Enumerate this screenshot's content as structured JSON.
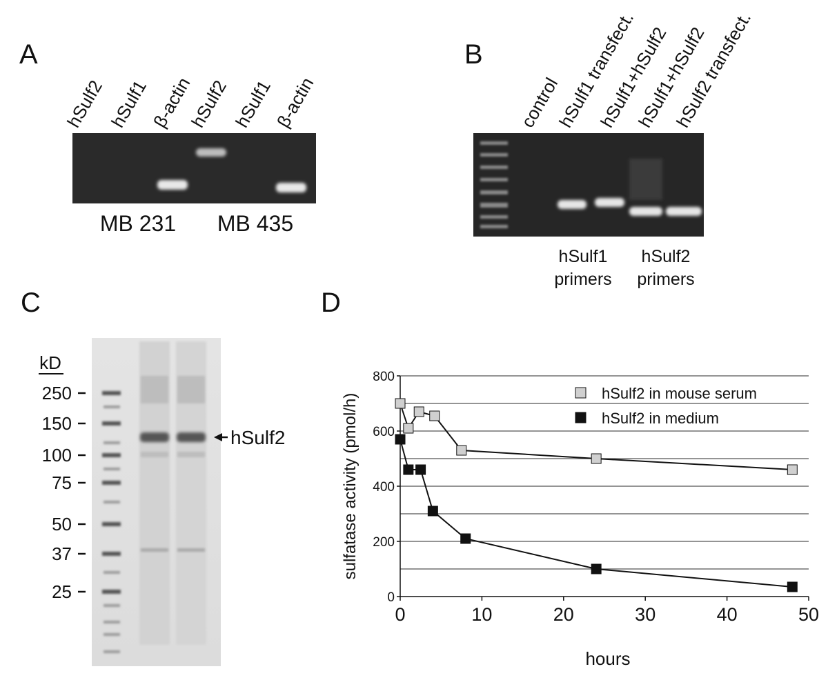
{
  "panel_labels": [
    "A",
    "B",
    "C",
    "D"
  ],
  "panel_a": {
    "lanes": [
      "hSulf2",
      "hSulf1",
      "β-actin",
      "hSulf2",
      "hSulf1",
      "β-actin"
    ],
    "cell_lines": [
      "MB 231",
      "MB 435"
    ]
  },
  "panel_b": {
    "lanes": [
      "control",
      "hSulf1 transfect.",
      "hSulf1+hSulf2",
      "hSulf1+hSulf2",
      "hSulf2 transfect."
    ],
    "primers": [
      [
        "hSulf1",
        "primers"
      ],
      [
        "hSulf2",
        "primers"
      ]
    ]
  },
  "panel_c": {
    "unit": "kD",
    "markers": [
      250,
      150,
      100,
      75,
      50,
      37,
      25
    ],
    "band_label": "hSulf2"
  },
  "chart_data": {
    "type": "line",
    "x_label": "hours",
    "y_label": "sulfatase activity (pmol/h)",
    "xlim": [
      0,
      50
    ],
    "xticks": [
      0,
      10,
      20,
      30,
      40,
      50
    ],
    "ylim": [
      0,
      800
    ],
    "yticks": [
      0,
      200,
      400,
      600,
      800
    ],
    "ygrid": [
      100,
      200,
      300,
      400,
      500,
      600,
      700,
      800
    ],
    "legend": "top-right",
    "series": [
      {
        "name": "hSulf2 in mouse serum",
        "color": "#d0d0d0",
        "x": [
          0,
          1,
          2.3,
          4.2,
          7.5,
          24,
          48
        ],
        "values": [
          700,
          610,
          670,
          655,
          530,
          500,
          460
        ]
      },
      {
        "name": "hSulf2 in medium",
        "color": "#111111",
        "x": [
          0,
          1,
          2.5,
          4,
          8,
          24,
          48
        ],
        "values": [
          570,
          460,
          460,
          310,
          210,
          100,
          35
        ]
      }
    ]
  }
}
